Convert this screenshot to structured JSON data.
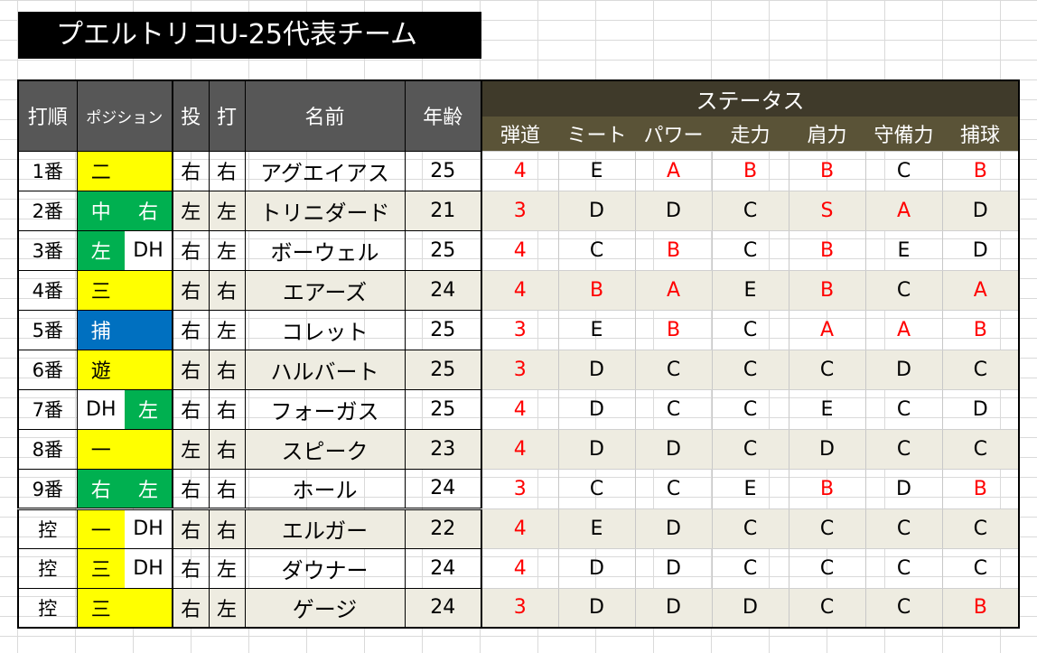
{
  "title": "プエルトリコU-25代表チーム",
  "headers": {
    "order": "打順",
    "position": "ポジション",
    "throws": "投",
    "bats": "打",
    "name": "名前",
    "age": "年齢",
    "status": "ステータス",
    "stats": [
      "弾道",
      "ミート",
      "パワー",
      "走力",
      "肩力",
      "守備力",
      "捕球"
    ]
  },
  "colors": {
    "yellow": "#ffff00",
    "green": "#00b050",
    "blue": "#0070c0",
    "red_text": "#ff0000",
    "status_header": "#3f3a2a"
  },
  "players": [
    {
      "order": "1番",
      "pos1": "二",
      "pos1_color": "yellow",
      "pos2": "",
      "pos2_color": "yellow",
      "throws": "右",
      "bats": "右",
      "name": "アグエイアス",
      "age": "25",
      "stats": [
        "4",
        "E",
        "A",
        "B",
        "B",
        "C",
        "B"
      ]
    },
    {
      "order": "2番",
      "pos1": "中",
      "pos1_color": "green",
      "pos2": "右",
      "pos2_color": "green",
      "throws": "左",
      "bats": "左",
      "name": "トリニダード",
      "age": "21",
      "stats": [
        "3",
        "D",
        "D",
        "C",
        "S",
        "A",
        "D"
      ]
    },
    {
      "order": "3番",
      "pos1": "左",
      "pos1_color": "green",
      "pos2": "DH",
      "pos2_color": "white",
      "throws": "右",
      "bats": "左",
      "name": "ボーウェル",
      "age": "25",
      "stats": [
        "4",
        "C",
        "B",
        "C",
        "B",
        "E",
        "D"
      ]
    },
    {
      "order": "4番",
      "pos1": "三",
      "pos1_color": "yellow",
      "pos2": "",
      "pos2_color": "yellow",
      "throws": "右",
      "bats": "右",
      "name": "エアーズ",
      "age": "24",
      "stats": [
        "4",
        "B",
        "A",
        "E",
        "B",
        "C",
        "A"
      ]
    },
    {
      "order": "5番",
      "pos1": "捕",
      "pos1_color": "blue",
      "pos2": "",
      "pos2_color": "blue",
      "throws": "右",
      "bats": "左",
      "name": "コレット",
      "age": "25",
      "stats": [
        "3",
        "E",
        "B",
        "C",
        "A",
        "A",
        "B"
      ]
    },
    {
      "order": "6番",
      "pos1": "遊",
      "pos1_color": "yellow",
      "pos2": "",
      "pos2_color": "yellow",
      "throws": "右",
      "bats": "右",
      "name": "ハルバート",
      "age": "25",
      "stats": [
        "3",
        "D",
        "C",
        "C",
        "C",
        "D",
        "C"
      ]
    },
    {
      "order": "7番",
      "pos1": "DH",
      "pos1_color": "white",
      "pos2": "左",
      "pos2_color": "green",
      "throws": "右",
      "bats": "右",
      "name": "フォーガス",
      "age": "25",
      "stats": [
        "4",
        "D",
        "C",
        "C",
        "E",
        "C",
        "D"
      ]
    },
    {
      "order": "8番",
      "pos1": "一",
      "pos1_color": "yellow",
      "pos2": "",
      "pos2_color": "yellow",
      "throws": "左",
      "bats": "右",
      "name": "スピーク",
      "age": "23",
      "stats": [
        "4",
        "D",
        "D",
        "C",
        "D",
        "C",
        "C"
      ]
    },
    {
      "order": "9番",
      "pos1": "右",
      "pos1_color": "green",
      "pos2": "左",
      "pos2_color": "green",
      "throws": "右",
      "bats": "右",
      "name": "ホール",
      "age": "24",
      "stats": [
        "3",
        "C",
        "C",
        "E",
        "B",
        "D",
        "B"
      ]
    },
    {
      "order": "控",
      "pos1": "一",
      "pos1_color": "yellow",
      "pos2": "DH",
      "pos2_color": "white",
      "throws": "右",
      "bats": "右",
      "name": "エルガー",
      "age": "22",
      "stats": [
        "4",
        "E",
        "D",
        "C",
        "C",
        "C",
        "C"
      ]
    },
    {
      "order": "控",
      "pos1": "三",
      "pos1_color": "yellow",
      "pos2": "DH",
      "pos2_color": "white",
      "throws": "右",
      "bats": "左",
      "name": "ダウナー",
      "age": "24",
      "stats": [
        "4",
        "D",
        "D",
        "C",
        "C",
        "C",
        "C"
      ]
    },
    {
      "order": "控",
      "pos1": "三",
      "pos1_color": "yellow",
      "pos2": "",
      "pos2_color": "yellow",
      "throws": "右",
      "bats": "左",
      "name": "ゲージ",
      "age": "24",
      "stats": [
        "3",
        "D",
        "D",
        "D",
        "C",
        "C",
        "B"
      ]
    }
  ]
}
